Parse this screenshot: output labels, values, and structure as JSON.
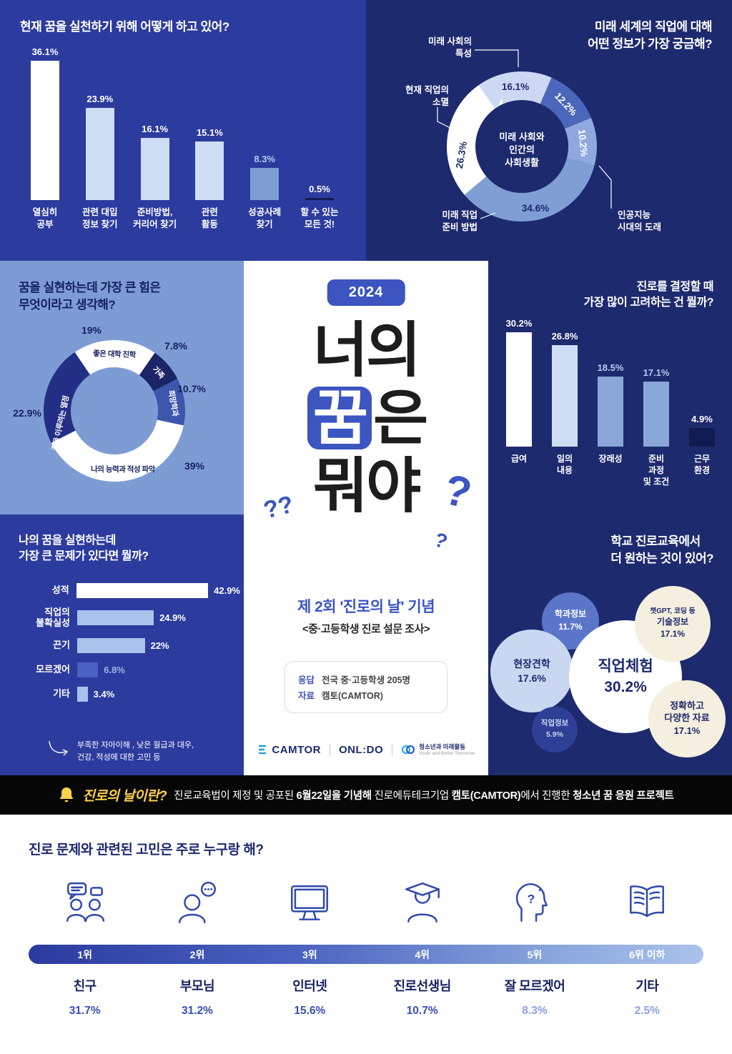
{
  "colors": {
    "panel_blue": "#2c3b9e",
    "panel_navy": "#1d2a6e",
    "panel_light_blue": "#7e9cd4",
    "accent_blue": "#3c55c0",
    "banner_yellow": "#ffd24a",
    "light_bar": "#cfddf4",
    "mid_bar": "#7f9fd4"
  },
  "practice": {
    "title": "현재 꿈을 실천하기 위해 어떻게 하고 있어?"
  },
  "curiosity": {
    "title_line1": "미래 세계의 직업에 대해",
    "title_line2": "어떤 정보가 가장 궁금해?",
    "center_line1": "미래 사회와",
    "center_line2": "인간의",
    "center_line3": "사회생활",
    "callout_future_line1": "미래 사회의",
    "callout_future_line2": "특성",
    "callout_disappear_line1": "현재 직업의",
    "callout_disappear_line2": "소멸",
    "callout_prepare_line1": "미래 직업",
    "callout_prepare_line2": "준비 방법",
    "callout_ai_line1": "인공지능",
    "callout_ai_line2": "시대의 도래"
  },
  "power": {
    "title_line1": "꿈을 실현하는데 가장 큰 힘은",
    "title_line2": "무엇이라고 생각해?"
  },
  "consider": {
    "title_line1": "진로를 결정할 때",
    "title_line2": "가장 많이 고려하는 건 뭘까?"
  },
  "problem": {
    "title_line1": "나의 꿈을 실현하는데",
    "title_line2": "가장 큰 문제가 있다면 뭘까?",
    "note_line1": "부족한 자아이해 , 낮은 월급과 대우,",
    "note_line2": "건강, 적성에 대한 고민 등"
  },
  "school": {
    "title_line1": "학교 진로교육에서",
    "title_line2": "더 원하는 것이 있어?"
  },
  "center": {
    "year_badge": "2024",
    "headline_line1": "너의",
    "headline_word": "꿈",
    "headline_suffix": "은",
    "headline_line3": "뭐야",
    "deco_a": "??",
    "deco_b": "?",
    "deco_c": "?",
    "event_title": "제 2회 '진로의 날' 기념",
    "event_subtitle": "<중·고등학생 진로 설문 조사>",
    "respond_label": "응답",
    "respond_value": "전국 중·고등학생 205명",
    "source_label": "자료",
    "source_value": "캠토(CAMTOR)",
    "logo_camtor": "CAMTOR",
    "logo_onldo": "ONL:DO",
    "logo_youth_line1": "청소년과 미래활동",
    "logo_youth_line2": "Youth and Better Tomorrow"
  },
  "banner": {
    "label": "진로의 날이란?",
    "parts": [
      {
        "text": "진로교육법이 제정 및 공포된 ",
        "bold": false
      },
      {
        "text": "6월22일을 기념해",
        "bold": true
      },
      {
        "text": " 진로에듀테크기업 ",
        "bold": false
      },
      {
        "text": "캠토(CAMTOR)",
        "bold": true
      },
      {
        "text": "에서 진행한 ",
        "bold": false
      },
      {
        "text": "청소년 꿈 응원 프로젝트",
        "bold": true
      }
    ]
  },
  "chart_data": [
    {
      "id": "practice",
      "type": "bar",
      "title": "현재 꿈을 실천하기 위해 어떻게 하고 있어?",
      "categories": [
        [
          "열심히",
          "공부"
        ],
        [
          "관련 대입",
          "정보 찾기"
        ],
        [
          "준비방법,",
          "커리어 찾기"
        ],
        [
          "관련",
          "활동"
        ],
        [
          "성공사례",
          "찾기"
        ],
        [
          "할 수 있는",
          "모든 것!"
        ]
      ],
      "values": [
        36.1,
        23.9,
        16.1,
        15.1,
        8.3,
        0.5
      ],
      "bar_colors": [
        "#ffffff",
        "#cfddf4",
        "#cfddf4",
        "#cfddf4",
        "#7f9fd4",
        "#141c52"
      ],
      "value_colors": [
        "#ffffff",
        "#ffffff",
        "#ffffff",
        "#ffffff",
        "#b7c9ee",
        "#ffffff"
      ],
      "ylim": [
        0,
        40
      ]
    },
    {
      "id": "curiosity",
      "type": "donut",
      "title": "미래 세계의 직업에 대해 어떤 정보가 가장 궁금해?",
      "segments": [
        {
          "label": "미래 사회의 특성",
          "value": 16.1,
          "pct": "16.1%",
          "color": "#cdd9f2"
        },
        {
          "label": "미래 사회와 인간의 사회생활",
          "value": 12.2,
          "pct": "12.2%",
          "color": "#4a67bb"
        },
        {
          "label": "인공지능 시대의 도래",
          "value": 10.2,
          "pct": "10.2%",
          "color": "#8fa9de"
        },
        {
          "label": "미래 직업 준비 방법",
          "value": 34.6,
          "pct": "34.6%",
          "color": "#7f9fd4"
        },
        {
          "label": "현재 직업의 소멸",
          "value": 26.3,
          "pct": "26.3%",
          "color": "#ffffff"
        }
      ]
    },
    {
      "id": "power",
      "type": "donut",
      "title": "꿈을 실현하는데 가장 큰 힘은 무엇이라고 생각해?",
      "segments": [
        {
          "label": "좋은 대학 진학",
          "value": 19,
          "pct": "19%",
          "color": "#ffffff"
        },
        {
          "label": "가족",
          "value": 7.8,
          "pct": "7.8%",
          "color": "#1b2566"
        },
        {
          "label": "희망학과",
          "value": 10.7,
          "pct": "10.7%",
          "color": "#3d56ae"
        },
        {
          "label": "나의 능력과 적성 파악",
          "value": 39,
          "pct": "39%",
          "color": "#ffffff"
        },
        {
          "label": "꿈을 이루려는 열정",
          "value": 22.9,
          "pct": "22.9%",
          "color": "#232f85"
        }
      ]
    },
    {
      "id": "consider",
      "type": "bar",
      "title": "진로를 결정할 때 가장 많이 고려하는 건 뭘까?",
      "categories": [
        [
          "급여"
        ],
        [
          "일의",
          "내용"
        ],
        [
          "장래성"
        ],
        [
          "준비",
          "과정",
          "및 조건"
        ],
        [
          "근무",
          "환경"
        ]
      ],
      "values": [
        30.2,
        26.8,
        18.5,
        17.1,
        4.9
      ],
      "bar_colors": [
        "#ffffff",
        "#cfddf4",
        "#8aa6d9",
        "#8aa6d9",
        "#131c52"
      ],
      "value_colors": [
        "#ffffff",
        "#ffffff",
        "#b7c9ee",
        "#b7c9ee",
        "#ffffff"
      ],
      "ylim": [
        0,
        35
      ]
    },
    {
      "id": "problem",
      "type": "bar",
      "orientation": "horizontal",
      "title": "나의 꿈을 실현하는데 가장 큰 문제가 있다면 뭘까?",
      "categories": [
        [
          "성적"
        ],
        [
          "직업의",
          "불확실성"
        ],
        [
          "끈기"
        ],
        [
          "모르겠어"
        ],
        [
          "기타"
        ]
      ],
      "values": [
        42.9,
        24.9,
        22,
        6.8,
        3.4
      ],
      "bar_colors": [
        "#ffffff",
        "#a9c2ec",
        "#a9c2ec",
        "#4a61c1",
        "#a9c2ec"
      ],
      "value_colors": [
        "#ffffff",
        "#ffffff",
        "#ffffff",
        "#9db1e4",
        "#ffffff"
      ],
      "xlim": [
        0,
        50
      ]
    },
    {
      "id": "school",
      "type": "bubble",
      "title": "학교 진로교육에서 더 원하는 것이 있어?",
      "bubbles": [
        {
          "lines": [
            "학과정보"
          ],
          "pct": "11.7%",
          "value": 11.7,
          "bg": "#5b76c8",
          "fg": "#ffffff"
        },
        {
          "lines": [
            "현장견학"
          ],
          "pct": "17.6%",
          "value": 17.6,
          "bg": "#c9d7f1",
          "fg": "#1d2a6e"
        },
        {
          "lines": [
            "직업체험"
          ],
          "pct": "30.2%",
          "value": 30.2,
          "bg": "#ffffff",
          "fg": "#1d2a6e"
        },
        {
          "lines": [
            "챗GPT, 코딩 등",
            "기술정보"
          ],
          "pct": "17.1%",
          "value": 17.1,
          "bg": "#f5efdf",
          "fg": "#1d2a6e",
          "small_first": true
        },
        {
          "lines": [
            "정확하고",
            "다양한 자료"
          ],
          "pct": "17.1%",
          "value": 17.1,
          "bg": "#f5efdf",
          "fg": "#1d2a6e"
        },
        {
          "lines": [
            "직업정보"
          ],
          "pct": "5.9%",
          "value": 5.9,
          "bg": "#2e3f96",
          "fg": "#c9d7f1"
        }
      ]
    },
    {
      "id": "confidant",
      "type": "bar",
      "title": "진로 문제와 관련된 고민은 주로 누구랑 해?",
      "items": [
        {
          "icon": "friends-icon",
          "rank": "1위",
          "name": "친구",
          "pct": "31.7%",
          "value": 31.7,
          "pct_color": "#3450b4"
        },
        {
          "icon": "parents-icon",
          "rank": "2위",
          "name": "부모님",
          "pct": "31.2%",
          "value": 31.2,
          "pct_color": "#3450b4"
        },
        {
          "icon": "internet-icon",
          "rank": "3위",
          "name": "인터넷",
          "pct": "15.6%",
          "value": 15.6,
          "pct_color": "#3450b4"
        },
        {
          "icon": "teacher-icon",
          "rank": "4위",
          "name": "진로선생님",
          "pct": "10.7%",
          "value": 10.7,
          "pct_color": "#3450b4"
        },
        {
          "icon": "unsure-icon",
          "rank": "5위",
          "name": "잘 모르겠어",
          "pct": "8.3%",
          "value": 8.3,
          "pct_color": "#8aa0dd"
        },
        {
          "icon": "etc-icon",
          "rank": "6위 이하",
          "name": "기타",
          "pct": "2.5%",
          "value": 2.5,
          "pct_color": "#8aa0dd"
        }
      ]
    }
  ]
}
